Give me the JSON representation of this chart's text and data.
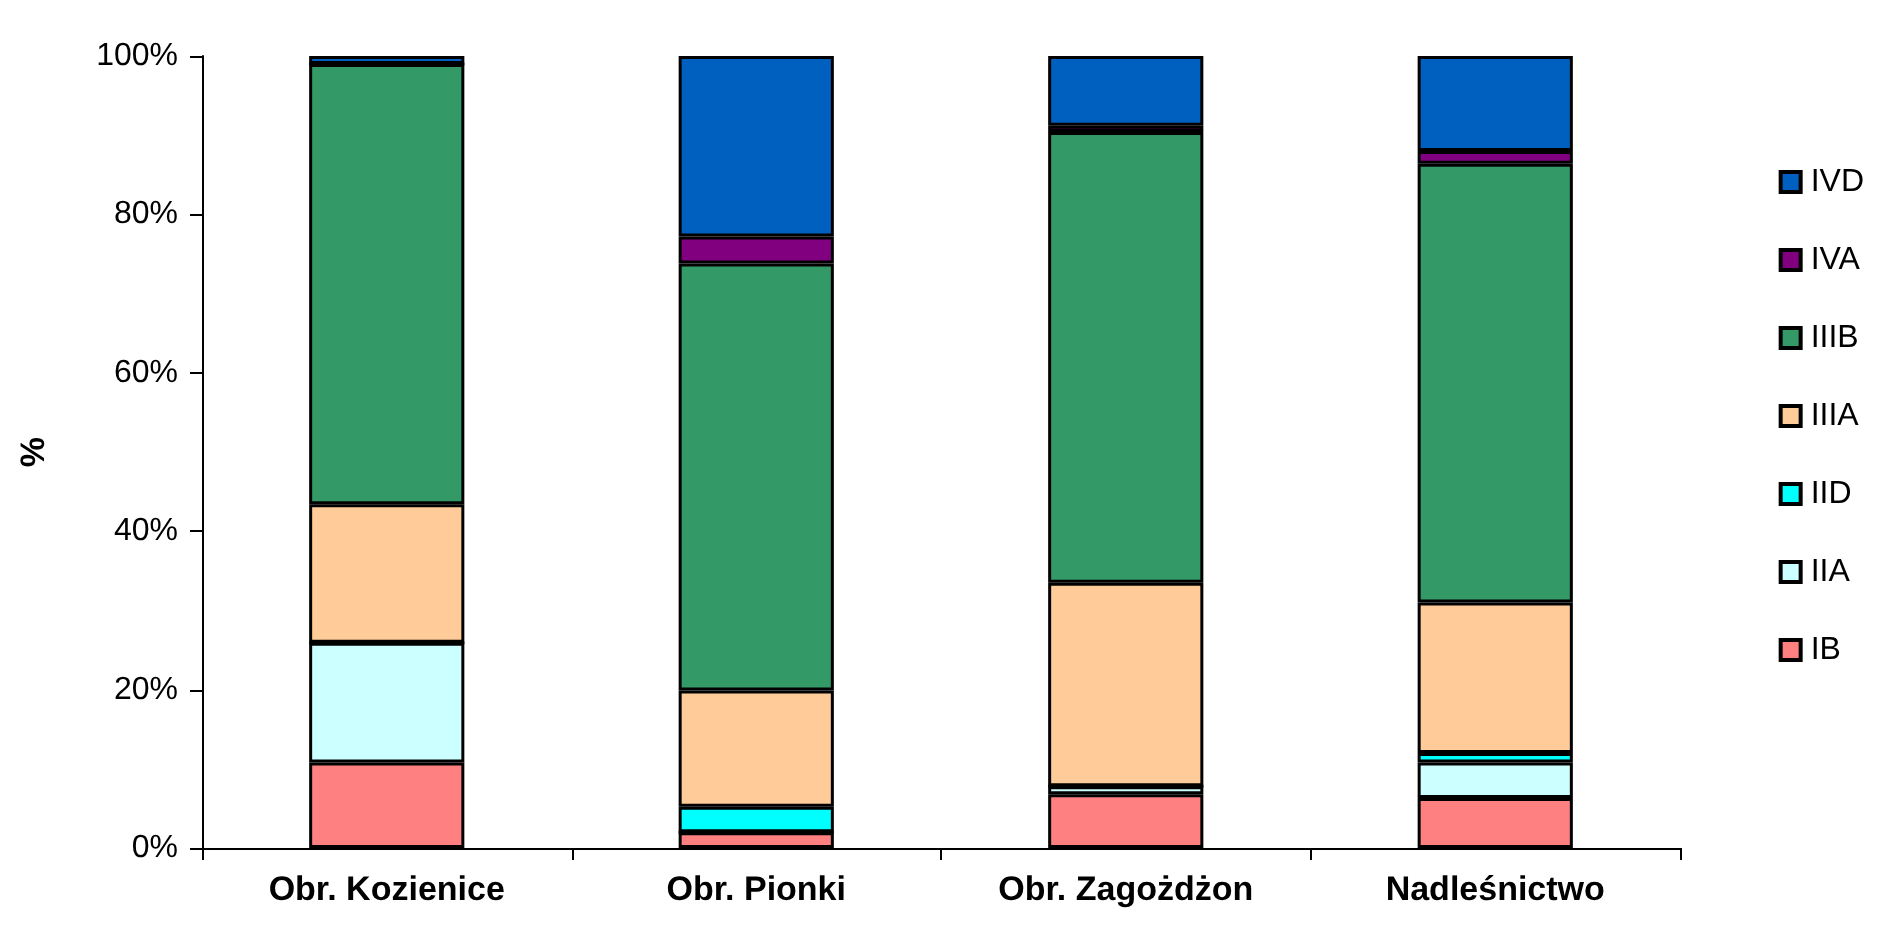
{
  "chart_data": {
    "type": "bar",
    "stacked": true,
    "ylabel": "%",
    "categories": [
      "Obr. Kozienice",
      "Obr. Pionki",
      "Obr. Zagożdżon",
      "Nadleśnictwo"
    ],
    "series": [
      {
        "name": "IB",
        "color": "#ff8080",
        "values": [
          10.8,
          2.0,
          6.8,
          6.3
        ]
      },
      {
        "name": "IIA",
        "color": "#ccffff",
        "values": [
          15.1,
          0,
          1.0,
          4.5
        ]
      },
      {
        "name": "IID",
        "color": "#00ffff",
        "values": [
          0,
          3.2,
          0,
          1.2
        ]
      },
      {
        "name": "IIIA",
        "color": "#ffcc99",
        "values": [
          17.5,
          14.7,
          25.7,
          19.0
        ]
      },
      {
        "name": "IIIB",
        "color": "#339966",
        "values": [
          55.6,
          53.9,
          56.9,
          55.4
        ]
      },
      {
        "name": "IVA",
        "color": "#800080",
        "values": [
          0,
          3.4,
          0.8,
          1.6
        ]
      },
      {
        "name": "IVD",
        "color": "#0060c0",
        "values": [
          1.0,
          22.8,
          8.8,
          12.0
        ]
      }
    ],
    "ylim": [
      0,
      100
    ],
    "yticks": [
      {
        "value": 0,
        "label": "0%"
      },
      {
        "value": 20,
        "label": "20%"
      },
      {
        "value": 40,
        "label": "40%"
      },
      {
        "value": 60,
        "label": "60%"
      },
      {
        "value": 80,
        "label": "80%"
      },
      {
        "value": 100,
        "label": "100%"
      }
    ],
    "grid": false,
    "legend": "right"
  }
}
